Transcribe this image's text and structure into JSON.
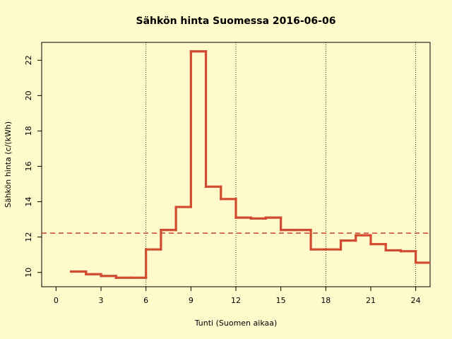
{
  "chart_data": {
    "type": "step",
    "title": "Sähkön hinta Suomessa 2016-06-06",
    "x_label": "Tunti (Suomen aikaa)",
    "y_label": "Sähkön hinta (c/(kWh)",
    "x": [
      1,
      2,
      3,
      4,
      5,
      6,
      7,
      8,
      9,
      10,
      11,
      12,
      13,
      14,
      15,
      16,
      17,
      18,
      19,
      20,
      21,
      22,
      23,
      24,
      25
    ],
    "series": [
      {
        "color": "#d24b30",
        "values": [
          10.05,
          9.9,
          9.8,
          9.7,
          9.7,
          11.3,
          12.4,
          13.7,
          22.5,
          14.85,
          14.15,
          13.1,
          13.05,
          13.1,
          12.4,
          12.4,
          11.3,
          11.3,
          11.8,
          12.1,
          11.6,
          11.25,
          11.2,
          10.55,
          10.55
        ]
      }
    ],
    "hline": {
      "value": 12.22,
      "color": "#c8412c"
    },
    "vlines": [
      6,
      12,
      18,
      24
    ],
    "xlim": [
      -0.96,
      24.96
    ],
    "ylim": [
      9.19,
      23.01
    ],
    "xticks": [
      0,
      3,
      6,
      9,
      12,
      15,
      18,
      21,
      24
    ],
    "yticks": [
      10,
      12,
      14,
      16,
      18,
      20,
      22
    ]
  }
}
